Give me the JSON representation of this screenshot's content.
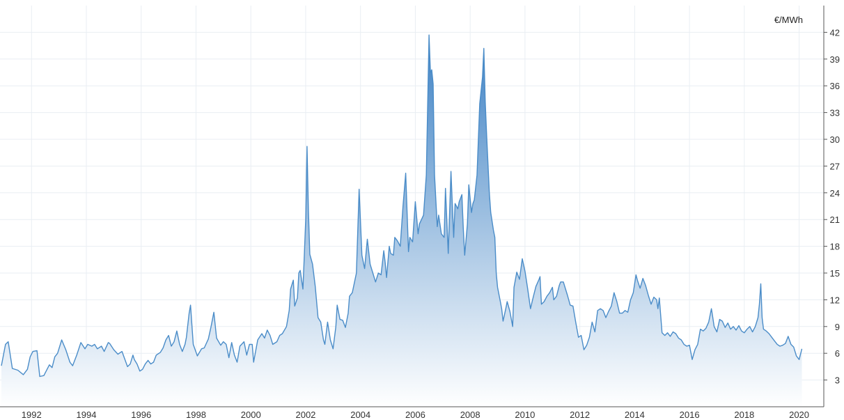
{
  "chart_data": {
    "type": "area",
    "title": "",
    "xlabel": "",
    "ylabel": "",
    "unit_label": "€/MWh",
    "x_tick_labels": [
      "1992",
      "1994",
      "1996",
      "1998",
      "2000",
      "2002",
      "2004",
      "2006",
      "2008",
      "2010",
      "2012",
      "2014",
      "2016",
      "2018",
      "2020"
    ],
    "y_ticks": [
      3,
      6,
      9,
      12,
      15,
      18,
      21,
      24,
      27,
      30,
      33,
      36,
      39,
      42
    ],
    "xlim": [
      1990.85,
      2020.9
    ],
    "ylim": [
      0,
      45
    ],
    "grid": true,
    "line_color": "#4a8cc8",
    "fill_top_color": "#3f82c4",
    "fill_bottom_color": "#ffffff",
    "series": [
      {
        "values": [
          [
            1990.9,
            4.6
          ],
          [
            1991.05,
            7.0
          ],
          [
            1991.15,
            7.3
          ],
          [
            1991.3,
            4.3
          ],
          [
            1991.5,
            4.1
          ],
          [
            1991.7,
            3.6
          ],
          [
            1991.85,
            4.2
          ],
          [
            1991.95,
            5.6
          ],
          [
            1992.05,
            6.2
          ],
          [
            1992.2,
            6.3
          ],
          [
            1992.3,
            3.4
          ],
          [
            1992.45,
            3.5
          ],
          [
            1992.65,
            4.7
          ],
          [
            1992.75,
            4.4
          ],
          [
            1992.85,
            5.6
          ],
          [
            1992.95,
            6.0
          ],
          [
            1993.1,
            7.5
          ],
          [
            1993.25,
            6.4
          ],
          [
            1993.4,
            5.0
          ],
          [
            1993.5,
            4.6
          ],
          [
            1993.65,
            5.8
          ],
          [
            1993.8,
            7.2
          ],
          [
            1993.95,
            6.5
          ],
          [
            1994.05,
            7.0
          ],
          [
            1994.2,
            6.8
          ],
          [
            1994.3,
            7.0
          ],
          [
            1994.4,
            6.5
          ],
          [
            1994.55,
            6.8
          ],
          [
            1994.65,
            6.2
          ],
          [
            1994.8,
            7.2
          ],
          [
            1994.85,
            7.1
          ],
          [
            1995.0,
            6.4
          ],
          [
            1995.15,
            5.9
          ],
          [
            1995.3,
            6.2
          ],
          [
            1995.5,
            4.5
          ],
          [
            1995.6,
            4.8
          ],
          [
            1995.7,
            5.8
          ],
          [
            1995.75,
            5.3
          ],
          [
            1995.85,
            4.8
          ],
          [
            1995.95,
            4.0
          ],
          [
            1996.05,
            4.2
          ],
          [
            1996.15,
            4.8
          ],
          [
            1996.25,
            5.2
          ],
          [
            1996.35,
            4.8
          ],
          [
            1996.45,
            5.0
          ],
          [
            1996.55,
            5.8
          ],
          [
            1996.7,
            6.1
          ],
          [
            1996.8,
            6.6
          ],
          [
            1996.9,
            7.5
          ],
          [
            1997.0,
            8.0
          ],
          [
            1997.1,
            6.8
          ],
          [
            1997.2,
            7.3
          ],
          [
            1997.3,
            8.5
          ],
          [
            1997.4,
            7.0
          ],
          [
            1997.5,
            6.2
          ],
          [
            1997.6,
            7.0
          ],
          [
            1997.65,
            7.8
          ],
          [
            1997.75,
            10.5
          ],
          [
            1997.8,
            11.4
          ],
          [
            1997.9,
            7.0
          ],
          [
            1998.05,
            5.7
          ],
          [
            1998.2,
            6.5
          ],
          [
            1998.3,
            6.6
          ],
          [
            1998.45,
            7.6
          ],
          [
            1998.55,
            9.0
          ],
          [
            1998.65,
            10.6
          ],
          [
            1998.75,
            7.7
          ],
          [
            1998.9,
            6.9
          ],
          [
            1999.0,
            7.3
          ],
          [
            1999.1,
            7.0
          ],
          [
            1999.2,
            5.5
          ],
          [
            1999.3,
            7.2
          ],
          [
            1999.4,
            5.8
          ],
          [
            1999.5,
            5.0
          ],
          [
            1999.6,
            6.8
          ],
          [
            1999.75,
            7.3
          ],
          [
            1999.85,
            5.8
          ],
          [
            1999.95,
            7.0
          ],
          [
            2000.05,
            7.0
          ],
          [
            2000.1,
            5.0
          ],
          [
            2000.25,
            7.5
          ],
          [
            2000.4,
            8.2
          ],
          [
            2000.5,
            7.7
          ],
          [
            2000.6,
            8.6
          ],
          [
            2000.7,
            8.0
          ],
          [
            2000.8,
            7.0
          ],
          [
            2000.95,
            7.3
          ],
          [
            2001.05,
            8.0
          ],
          [
            2001.15,
            8.2
          ],
          [
            2001.3,
            9.0
          ],
          [
            2001.4,
            10.8
          ],
          [
            2001.45,
            13.2
          ],
          [
            2001.55,
            14.2
          ],
          [
            2001.6,
            11.3
          ],
          [
            2001.7,
            12.2
          ],
          [
            2001.75,
            15.0
          ],
          [
            2001.8,
            15.3
          ],
          [
            2001.9,
            13.2
          ],
          [
            2001.95,
            17.0
          ],
          [
            2002.0,
            21.0
          ],
          [
            2002.05,
            29.2
          ],
          [
            2002.1,
            22.0
          ],
          [
            2002.15,
            17.1
          ],
          [
            2002.25,
            16.0
          ],
          [
            2002.35,
            13.5
          ],
          [
            2002.45,
            10.0
          ],
          [
            2002.55,
            9.5
          ],
          [
            2002.65,
            7.5
          ],
          [
            2002.7,
            7.0
          ],
          [
            2002.8,
            9.5
          ],
          [
            2002.9,
            7.5
          ],
          [
            2003.0,
            6.5
          ],
          [
            2003.1,
            9.0
          ],
          [
            2003.15,
            11.4
          ],
          [
            2003.25,
            9.8
          ],
          [
            2003.35,
            9.7
          ],
          [
            2003.45,
            8.9
          ],
          [
            2003.55,
            10.5
          ],
          [
            2003.6,
            12.4
          ],
          [
            2003.7,
            12.8
          ],
          [
            2003.75,
            13.5
          ],
          [
            2003.85,
            15.0
          ],
          [
            2003.95,
            24.4
          ],
          [
            2004.05,
            17.0
          ],
          [
            2004.15,
            15.5
          ],
          [
            2004.25,
            18.8
          ],
          [
            2004.35,
            16.0
          ],
          [
            2004.45,
            15.0
          ],
          [
            2004.55,
            14.0
          ],
          [
            2004.65,
            15.0
          ],
          [
            2004.75,
            14.8
          ],
          [
            2004.85,
            17.5
          ],
          [
            2004.9,
            16.2
          ],
          [
            2004.95,
            14.5
          ],
          [
            2005.05,
            18.0
          ],
          [
            2005.1,
            17.2
          ],
          [
            2005.2,
            17.0
          ],
          [
            2005.25,
            19.0
          ],
          [
            2005.35,
            18.6
          ],
          [
            2005.45,
            18.0
          ],
          [
            2005.55,
            22.5
          ],
          [
            2005.65,
            26.2
          ],
          [
            2005.75,
            17.4
          ],
          [
            2005.8,
            19.0
          ],
          [
            2005.9,
            18.5
          ],
          [
            2006.0,
            23.0
          ],
          [
            2006.1,
            19.4
          ],
          [
            2006.15,
            20.5
          ],
          [
            2006.3,
            21.5
          ],
          [
            2006.4,
            26.0
          ],
          [
            2006.5,
            41.7
          ],
          [
            2006.55,
            37.5
          ],
          [
            2006.6,
            37.8
          ],
          [
            2006.65,
            36.2
          ],
          [
            2006.7,
            26.0
          ],
          [
            2006.8,
            20.2
          ],
          [
            2006.85,
            21.5
          ],
          [
            2006.95,
            19.4
          ],
          [
            2007.05,
            19.0
          ],
          [
            2007.1,
            24.5
          ],
          [
            2007.2,
            17.2
          ],
          [
            2007.3,
            26.4
          ],
          [
            2007.4,
            19.0
          ],
          [
            2007.45,
            22.8
          ],
          [
            2007.55,
            22.2
          ],
          [
            2007.6,
            23.0
          ],
          [
            2007.7,
            23.8
          ],
          [
            2007.75,
            20.0
          ],
          [
            2007.8,
            17.0
          ],
          [
            2007.9,
            20.5
          ],
          [
            2007.95,
            24.9
          ],
          [
            2008.05,
            21.8
          ],
          [
            2008.1,
            22.8
          ],
          [
            2008.15,
            23.2
          ],
          [
            2008.25,
            26.0
          ],
          [
            2008.35,
            34.0
          ],
          [
            2008.45,
            37.0
          ],
          [
            2008.5,
            40.2
          ],
          [
            2008.55,
            34.2
          ],
          [
            2008.6,
            30.5
          ],
          [
            2008.7,
            24.0
          ],
          [
            2008.75,
            21.8
          ],
          [
            2008.85,
            19.8
          ],
          [
            2008.9,
            19.0
          ],
          [
            2008.95,
            15.0
          ],
          [
            2009.0,
            13.4
          ],
          [
            2009.1,
            11.8
          ],
          [
            2009.15,
            11.0
          ],
          [
            2009.2,
            9.6
          ],
          [
            2009.3,
            11.0
          ],
          [
            2009.35,
            11.8
          ],
          [
            2009.45,
            10.7
          ],
          [
            2009.55,
            9.0
          ],
          [
            2009.6,
            13.4
          ],
          [
            2009.7,
            15.1
          ],
          [
            2009.8,
            14.3
          ],
          [
            2009.9,
            16.6
          ],
          [
            2010.0,
            15.2
          ],
          [
            2010.1,
            13.2
          ],
          [
            2010.2,
            11.0
          ],
          [
            2010.3,
            12.3
          ],
          [
            2010.4,
            13.5
          ],
          [
            2010.5,
            14.2
          ],
          [
            2010.55,
            14.6
          ],
          [
            2010.6,
            11.5
          ],
          [
            2010.7,
            11.8
          ],
          [
            2010.8,
            12.4
          ],
          [
            2010.9,
            12.8
          ],
          [
            2011.0,
            13.4
          ],
          [
            2011.05,
            12.0
          ],
          [
            2011.15,
            12.4
          ],
          [
            2011.25,
            13.6
          ],
          [
            2011.3,
            14.0
          ],
          [
            2011.4,
            14.0
          ],
          [
            2011.55,
            12.5
          ],
          [
            2011.65,
            11.4
          ],
          [
            2011.75,
            11.3
          ],
          [
            2011.85,
            9.5
          ],
          [
            2011.95,
            7.8
          ],
          [
            2012.05,
            8.0
          ],
          [
            2012.15,
            6.4
          ],
          [
            2012.25,
            6.9
          ],
          [
            2012.35,
            7.8
          ],
          [
            2012.45,
            9.5
          ],
          [
            2012.55,
            8.4
          ],
          [
            2012.65,
            10.8
          ],
          [
            2012.75,
            11.0
          ],
          [
            2012.85,
            10.8
          ],
          [
            2012.95,
            10.0
          ],
          [
            2013.05,
            10.7
          ],
          [
            2013.15,
            11.3
          ],
          [
            2013.25,
            12.8
          ],
          [
            2013.35,
            11.8
          ],
          [
            2013.45,
            10.5
          ],
          [
            2013.55,
            10.5
          ],
          [
            2013.65,
            10.8
          ],
          [
            2013.75,
            10.6
          ],
          [
            2013.85,
            12.0
          ],
          [
            2013.95,
            12.8
          ],
          [
            2014.05,
            14.8
          ],
          [
            2014.1,
            14.2
          ],
          [
            2014.2,
            13.3
          ],
          [
            2014.3,
            14.4
          ],
          [
            2014.4,
            13.6
          ],
          [
            2014.5,
            12.5
          ],
          [
            2014.6,
            11.5
          ],
          [
            2014.7,
            12.3
          ],
          [
            2014.8,
            12.0
          ],
          [
            2014.85,
            11.0
          ],
          [
            2014.9,
            12.2
          ],
          [
            2015.0,
            8.3
          ],
          [
            2015.1,
            8.0
          ],
          [
            2015.2,
            8.3
          ],
          [
            2015.3,
            7.9
          ],
          [
            2015.4,
            8.4
          ],
          [
            2015.5,
            8.2
          ],
          [
            2015.6,
            7.7
          ],
          [
            2015.7,
            7.5
          ],
          [
            2015.8,
            7.0
          ],
          [
            2015.9,
            6.8
          ],
          [
            2016.0,
            6.9
          ],
          [
            2016.1,
            5.3
          ],
          [
            2016.2,
            6.4
          ],
          [
            2016.3,
            7.0
          ],
          [
            2016.4,
            8.7
          ],
          [
            2016.5,
            8.5
          ],
          [
            2016.6,
            8.8
          ],
          [
            2016.7,
            9.5
          ],
          [
            2016.8,
            11.0
          ],
          [
            2016.85,
            10.0
          ],
          [
            2016.9,
            9.0
          ],
          [
            2017.0,
            8.4
          ],
          [
            2017.1,
            9.8
          ],
          [
            2017.2,
            9.6
          ],
          [
            2017.3,
            8.9
          ],
          [
            2017.4,
            9.4
          ],
          [
            2017.5,
            8.7
          ],
          [
            2017.6,
            9.0
          ],
          [
            2017.7,
            8.6
          ],
          [
            2017.8,
            9.1
          ],
          [
            2017.9,
            8.5
          ],
          [
            2018.0,
            8.3
          ],
          [
            2018.1,
            8.7
          ],
          [
            2018.2,
            9.0
          ],
          [
            2018.3,
            8.4
          ],
          [
            2018.4,
            9.0
          ],
          [
            2018.5,
            10.0
          ],
          [
            2018.55,
            11.5
          ],
          [
            2018.6,
            13.8
          ],
          [
            2018.65,
            10.0
          ],
          [
            2018.7,
            8.7
          ],
          [
            2018.8,
            8.5
          ],
          [
            2018.9,
            8.2
          ],
          [
            2019.0,
            7.8
          ],
          [
            2019.1,
            7.4
          ],
          [
            2019.2,
            7.0
          ],
          [
            2019.3,
            6.8
          ],
          [
            2019.4,
            6.9
          ],
          [
            2019.5,
            7.1
          ],
          [
            2019.6,
            7.9
          ],
          [
            2019.7,
            7.0
          ],
          [
            2019.8,
            6.7
          ],
          [
            2019.9,
            5.7
          ],
          [
            2020.0,
            5.3
          ],
          [
            2020.1,
            6.5
          ]
        ]
      }
    ]
  }
}
